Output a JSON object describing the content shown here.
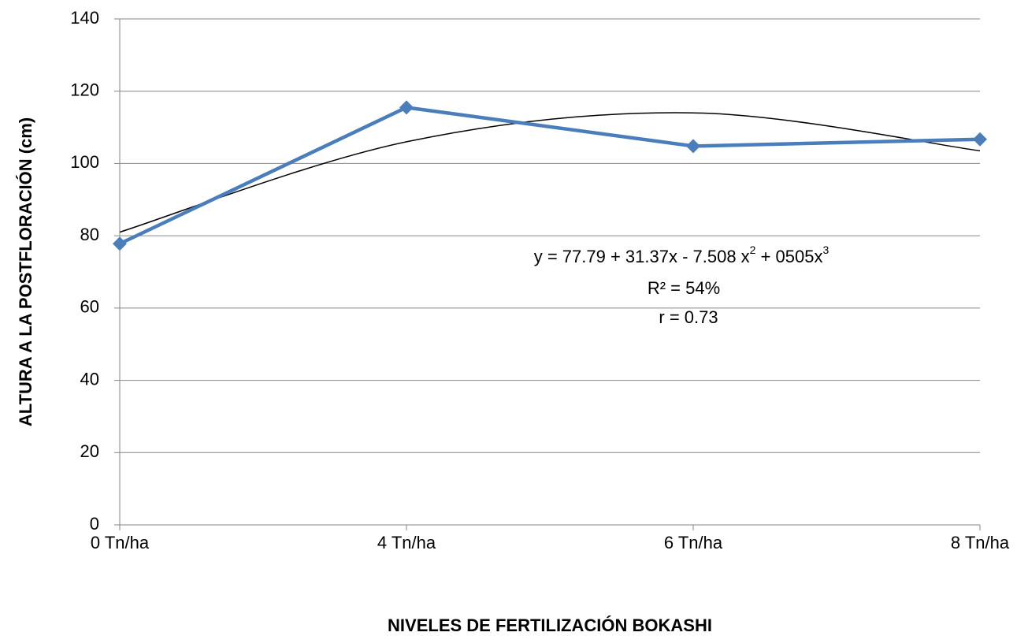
{
  "chart_data": {
    "type": "line",
    "categories": [
      "0 Tn/ha",
      "4 Tn/ha",
      "6 Tn/ha",
      "8 Tn/ha"
    ],
    "series": [
      {
        "color": "#4a7ebb",
        "values": [
          77.8,
          115.5,
          104.8,
          106.7
        ]
      }
    ],
    "trendline": {
      "color": "#000000",
      "values": [
        81,
        106,
        114,
        103.5
      ]
    },
    "ylim": [
      0,
      140
    ],
    "yticks": [
      0,
      20,
      40,
      60,
      80,
      100,
      120,
      140
    ],
    "grid": true,
    "y_label": "ALTURA  A LA POSTFLORACIÓN (cm)",
    "x_label": "NIVELES DE FERTILIZACIÓN BOKASHI",
    "annotations": {
      "equation": [
        "y = 77.79 + 31.37x - 7.508 x",
        "2",
        " + 0505x",
        "3"
      ],
      "r2": "R² = 54%",
      "r": "r = 0.73"
    }
  }
}
